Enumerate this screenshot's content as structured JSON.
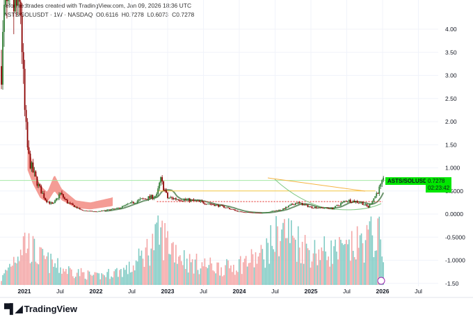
{
  "header": {
    "attribution": "reformedtrades created with TradingView.com, Jan 09, 2026 18:36 UTC",
    "symbol_line": "ASTS/SOLUSDT · 1W · NASDAQ",
    "ohlc": {
      "o": "O0.6116",
      "h": "H0.7278",
      "l": "L0.6073",
      "c": "C0.7278"
    }
  },
  "price_tag": {
    "symbol": "ASTS/SOLUSDT",
    "price": "0.7278",
    "countdown": "02:23:42"
  },
  "logo": "TradingView",
  "colors": {
    "up": "#26a69a",
    "up_body": "#1b5e20",
    "down": "#8b0000",
    "vol_up": "#80cbc4",
    "vol_down": "#f4a6a6",
    "tag": "#00e600",
    "ribbon": "#f28b82",
    "yellow": "#f5c842",
    "red_dotted": "#e53935",
    "green_line": "#81c784"
  },
  "chart_data": {
    "type": "candlestick",
    "title": "ASTS/SOLUSDT 1W",
    "y_ticks": [
      "4.00",
      "3.50",
      "3.00",
      "2.50",
      "2.00",
      "1.50",
      "1.000",
      "0.5000",
      "0.0000",
      "-0.5000",
      "-1.0000",
      "-1.50"
    ],
    "y_tick_values": [
      4,
      3.5,
      3,
      2.5,
      2,
      1.5,
      1,
      0.5,
      0,
      -0.5,
      -1,
      -1.5
    ],
    "x_ticks": [
      {
        "label": "2021",
        "t": 2021,
        "bold": true
      },
      {
        "label": "Jul",
        "t": 2021.5
      },
      {
        "label": "2022",
        "t": 2022,
        "bold": true
      },
      {
        "label": "Jul",
        "t": 2022.5
      },
      {
        "label": "2023",
        "t": 2023,
        "bold": true
      },
      {
        "label": "Jul",
        "t": 2023.5
      },
      {
        "label": "2024",
        "t": 2024,
        "bold": true
      },
      {
        "label": "Jul",
        "t": 2024.5
      },
      {
        "label": "2025",
        "t": 2025,
        "bold": true
      },
      {
        "label": "Jul",
        "t": 2025.5
      },
      {
        "label": "2026",
        "t": 2026,
        "bold": true
      },
      {
        "label": "Jul",
        "t": 2026.5
      }
    ],
    "ylim": [
      -1.55,
      4.65
    ],
    "price_keypoints": [
      [
        2020.68,
        3.2
      ],
      [
        2020.72,
        4.3
      ],
      [
        2020.8,
        4.5
      ],
      [
        2020.95,
        4.4
      ],
      [
        2021.0,
        2.3
      ],
      [
        2021.05,
        1.3
      ],
      [
        2021.1,
        1.0
      ],
      [
        2021.2,
        0.6
      ],
      [
        2021.3,
        0.3
      ],
      [
        2021.4,
        0.2
      ],
      [
        2021.5,
        0.45
      ],
      [
        2021.6,
        0.25
      ],
      [
        2021.8,
        0.08
      ],
      [
        2022.0,
        0.05
      ],
      [
        2022.3,
        0.12
      ],
      [
        2022.6,
        0.3
      ],
      [
        2022.85,
        0.4
      ],
      [
        2022.9,
        0.75
      ],
      [
        2023.0,
        0.35
      ],
      [
        2023.3,
        0.3
      ],
      [
        2023.5,
        0.25
      ],
      [
        2023.8,
        0.15
      ],
      [
        2024.0,
        0.05
      ],
      [
        2024.3,
        0.02
      ],
      [
        2024.6,
        0.1
      ],
      [
        2024.8,
        0.25
      ],
      [
        2025.0,
        0.15
      ],
      [
        2025.3,
        0.12
      ],
      [
        2025.5,
        0.3
      ],
      [
        2025.7,
        0.25
      ],
      [
        2025.8,
        0.15
      ],
      [
        2025.9,
        0.4
      ],
      [
        2026.02,
        0.7278
      ]
    ],
    "volume_keypoints": [
      [
        2020.68,
        0.1
      ],
      [
        2021.0,
        0.8
      ],
      [
        2021.2,
        0.5
      ],
      [
        2021.5,
        0.3
      ],
      [
        2022.0,
        0.15
      ],
      [
        2022.5,
        0.3
      ],
      [
        2022.9,
        0.9
      ],
      [
        2023.3,
        0.4
      ],
      [
        2023.8,
        0.3
      ],
      [
        2024.3,
        0.5
      ],
      [
        2024.6,
        1.0
      ],
      [
        2025.0,
        0.6
      ],
      [
        2025.5,
        0.6
      ],
      [
        2025.9,
        0.9
      ],
      [
        2026.02,
        0.75
      ]
    ],
    "horizontal_lines": [
      {
        "price": 0.7278,
        "color": "#a5e8a5"
      },
      {
        "price": 0.5,
        "from": 2022.85,
        "to": 2025.9,
        "color": "#f5c842"
      },
      {
        "price": 0.27,
        "from": 2022.85,
        "to": 2026.0,
        "color": "#e53935",
        "dashed": true
      }
    ]
  }
}
